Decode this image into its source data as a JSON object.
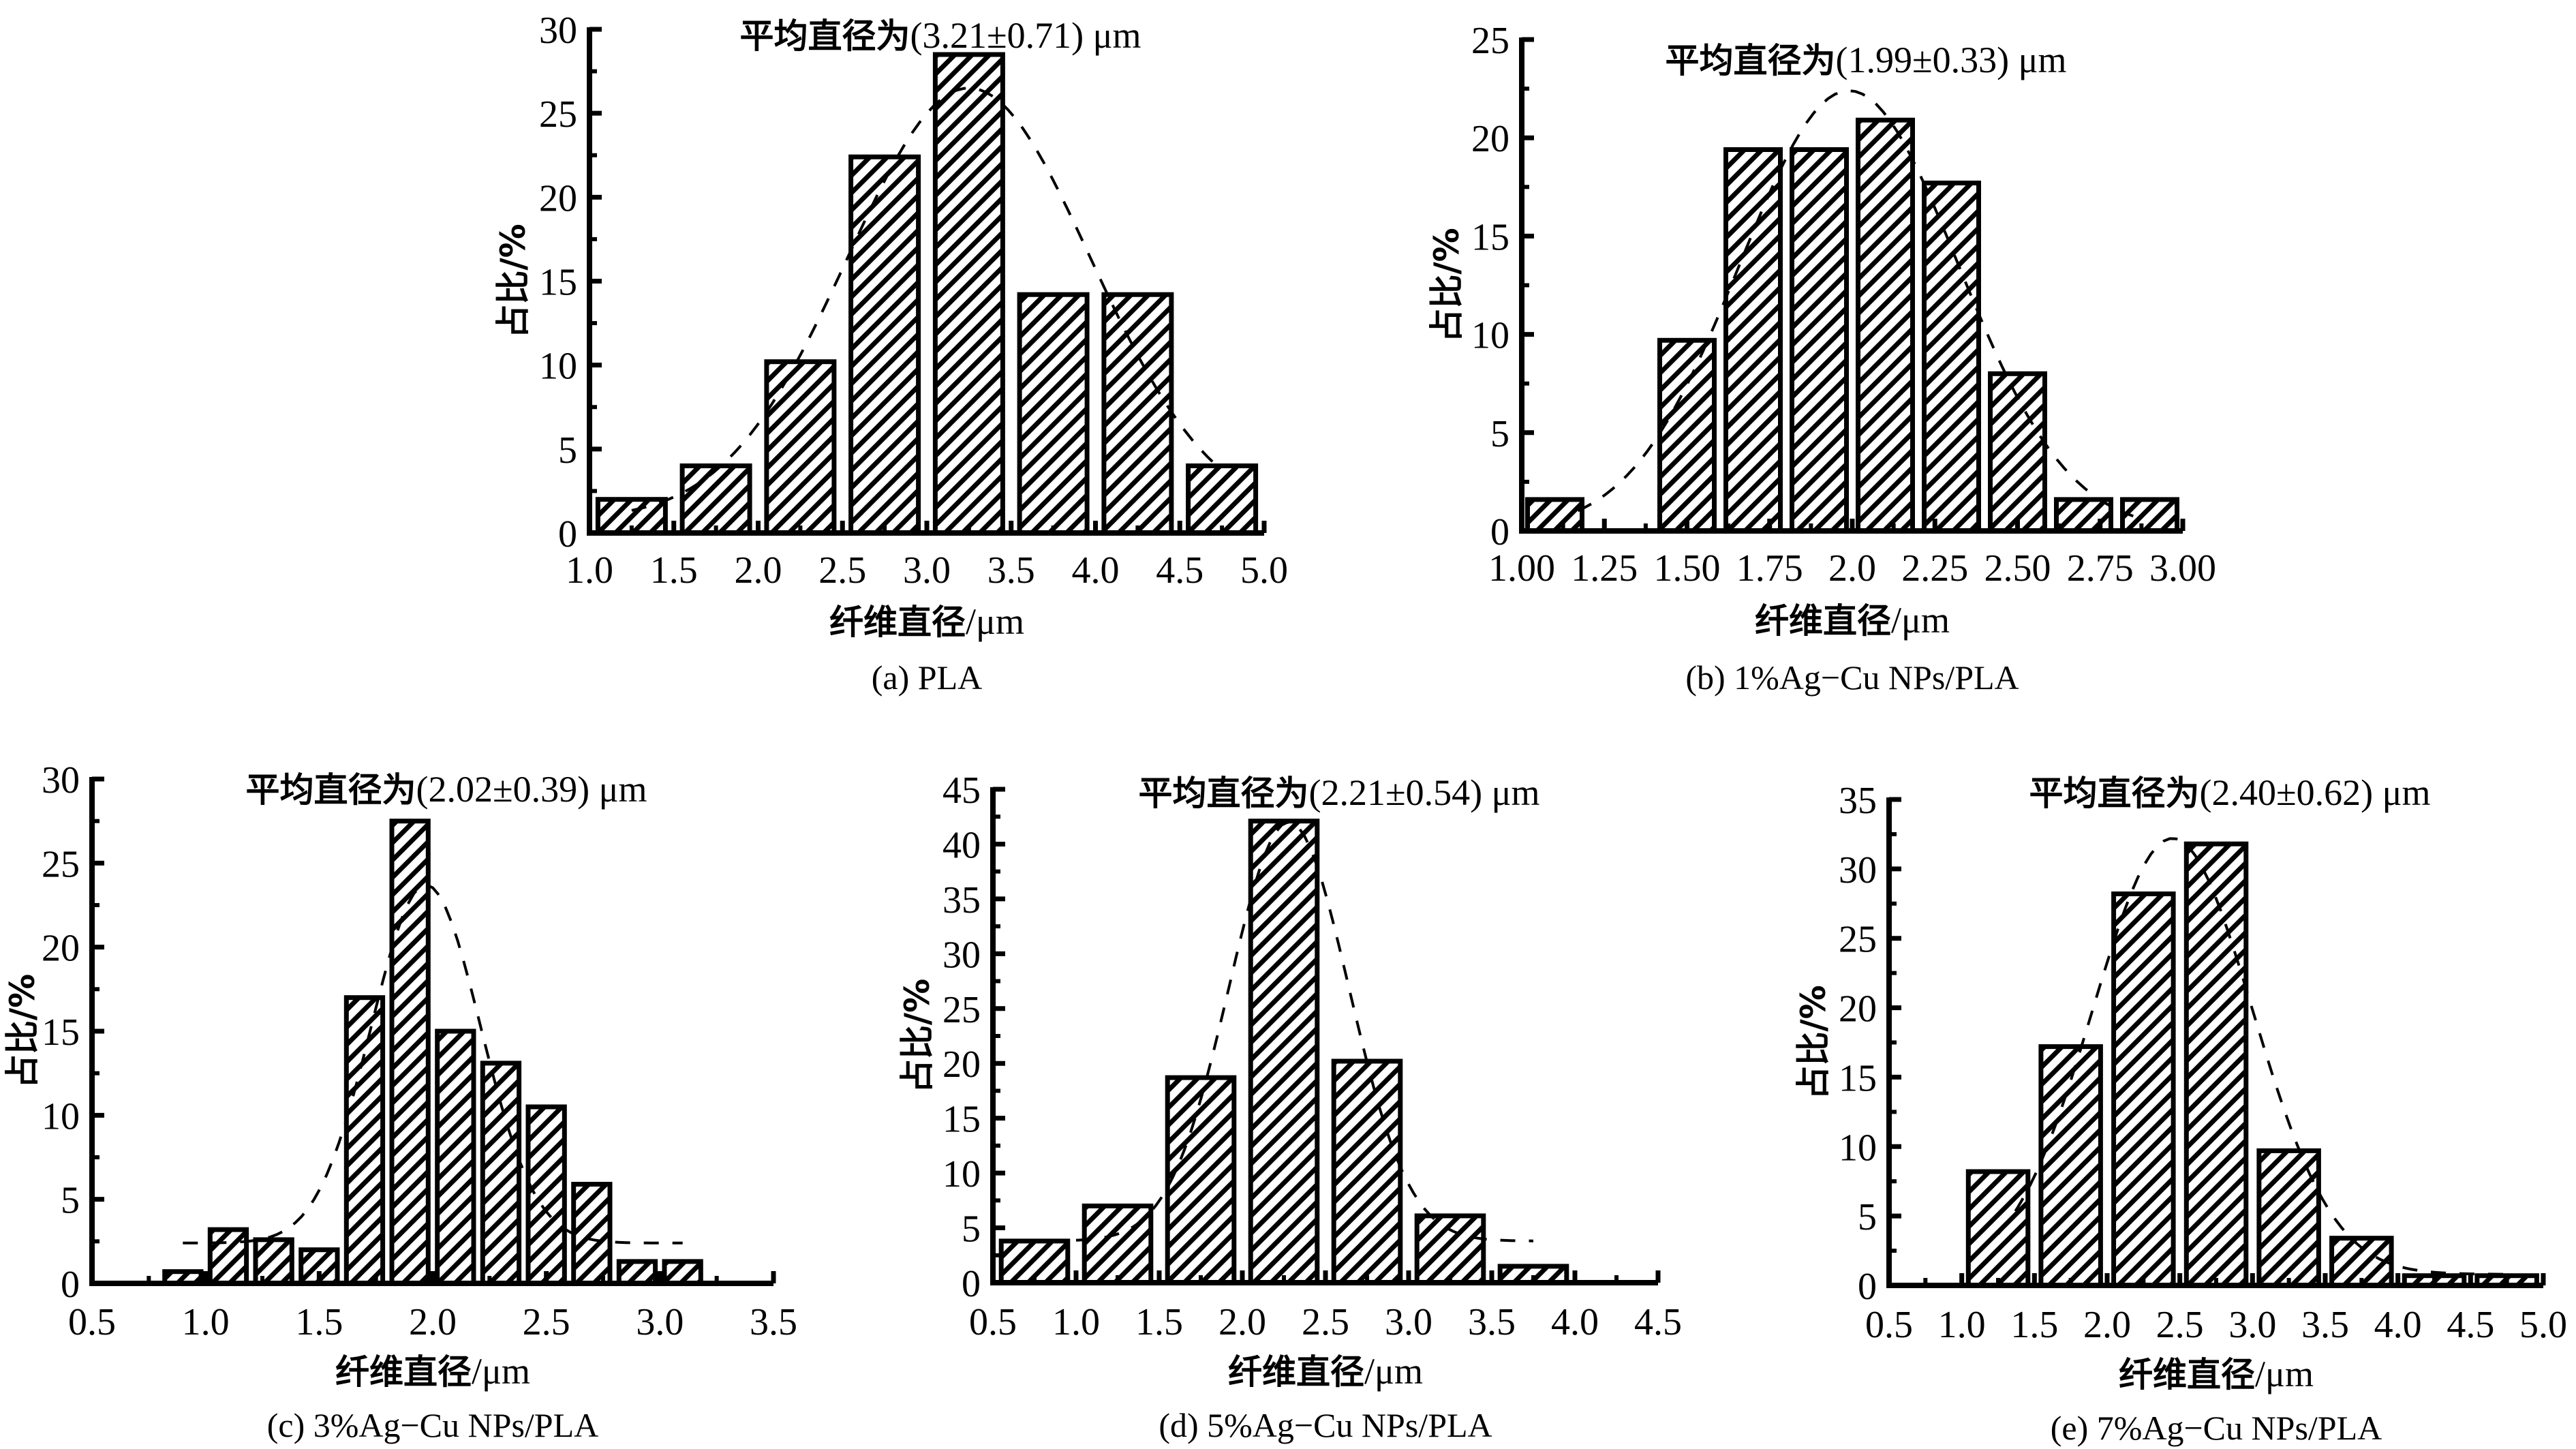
{
  "chart_data": [
    {
      "id": "a",
      "type": "bar",
      "title": "平均直径为(3.21±0.71) μm",
      "title_cn": "平均直径为",
      "title_num": "(3.21±0.71) μm",
      "xlabel_cn": "纤维直径",
      "xlabel_unit": "/μm",
      "ylabel": "占比/%",
      "caption": "(a) PLA",
      "xlim": [
        1.0,
        5.0
      ],
      "ylim": [
        0,
        30
      ],
      "xticks": [
        "1.0",
        "1.5",
        "2.0",
        "2.5",
        "3.0",
        "3.5",
        "4.0",
        "4.5",
        "5.0"
      ],
      "yticks": [
        "0",
        "5",
        "10",
        "15",
        "20",
        "25",
        "30"
      ],
      "ytick_step": 5,
      "bar_width": 0.4,
      "x": [
        1.25,
        1.75,
        2.25,
        2.75,
        3.25,
        3.75,
        4.25,
        4.75
      ],
      "values": [
        2.0,
        4.0,
        10.2,
        22.4,
        28.5,
        14.2,
        14.2,
        4.0
      ],
      "fit": {
        "type": "gaussian",
        "peak": 26.5,
        "center": 3.25,
        "sigma": 0.72,
        "baseline": 0.8,
        "from": 1.25,
        "to": 4.75
      }
    },
    {
      "id": "b",
      "type": "bar",
      "title": "平均直径为(1.99±0.33) μm",
      "title_cn": "平均直径为",
      "title_num": "(1.99±0.33) μm",
      "xlabel_cn": "纤维直径",
      "xlabel_unit": "/μm",
      "ylabel": "占比/%",
      "caption": "(b) 1%Ag−Cu NPs/PLA",
      "xlim": [
        1.0,
        3.0
      ],
      "ylim": [
        0,
        25
      ],
      "xticks": [
        "1.00",
        "1.25",
        "1.50",
        "1.75",
        "2.0",
        "2.25",
        "2.50",
        "2.75",
        "3.00"
      ],
      "yticks": [
        "0",
        "5",
        "10",
        "15",
        "20",
        "25"
      ],
      "ytick_step": 5,
      "bar_width": 0.165,
      "x": [
        1.1,
        1.5,
        1.7,
        1.9,
        2.1,
        2.3,
        2.5,
        2.7,
        2.9
      ],
      "values": [
        1.6,
        9.7,
        19.4,
        19.4,
        20.9,
        17.7,
        8.0,
        1.6,
        1.6
      ],
      "fit": {
        "type": "gaussian",
        "peak": 22.4,
        "center": 1.99,
        "sigma": 0.33,
        "baseline": 0,
        "from": 1.17,
        "to": 2.85
      }
    },
    {
      "id": "c",
      "type": "bar",
      "title": "平均直径为(2.02±0.39) μm",
      "title_cn": "平均直径为",
      "title_num": "(2.02±0.39) μm",
      "xlabel_cn": "纤维直径",
      "xlabel_unit": "/μm",
      "ylabel": "占比/%",
      "caption": "(c) 3%Ag−Cu NPs/PLA",
      "xlim": [
        0.5,
        3.5
      ],
      "ylim": [
        0,
        30
      ],
      "xticks": [
        "0.5",
        "1.0",
        "1.5",
        "2.0",
        "2.5",
        "3.0",
        "3.5"
      ],
      "yticks": [
        "0",
        "5",
        "10",
        "15",
        "20",
        "25",
        "30"
      ],
      "ytick_step": 5,
      "bar_width": 0.16,
      "x": [
        0.9,
        1.1,
        1.3,
        1.5,
        1.7,
        1.9,
        2.1,
        2.3,
        2.5,
        2.7,
        2.9,
        3.1
      ],
      "values": [
        0.7,
        3.2,
        2.6,
        2.0,
        17.0,
        27.5,
        15.0,
        13.1,
        10.5,
        5.9,
        1.3,
        1.3
      ],
      "fit": {
        "type": "gaussian",
        "peak": 23.7,
        "center": 1.97,
        "sigma": 0.24,
        "baseline": 2.4,
        "from": 0.9,
        "to": 3.1
      }
    },
    {
      "id": "d",
      "type": "bar",
      "title": "平均直径为(2.21±0.54) μm",
      "title_cn": "平均直径为",
      "title_num": "(2.21±0.54) μm",
      "xlabel_cn": "纤维直径",
      "xlabel_unit": "/μm",
      "ylabel": "占比/%",
      "caption": "(d) 5%Ag−Cu NPs/PLA",
      "xlim": [
        0.5,
        4.5
      ],
      "ylim": [
        0,
        45
      ],
      "xticks": [
        "0.5",
        "1.0",
        "1.5",
        "2.0",
        "2.5",
        "3.0",
        "3.5",
        "4.0",
        "4.5"
      ],
      "yticks": [
        "0",
        "5",
        "10",
        "15",
        "20",
        "25",
        "30",
        "35",
        "40",
        "45"
      ],
      "ytick_step": 5,
      "bar_width": 0.4,
      "x": [
        0.75,
        1.25,
        1.75,
        2.25,
        2.75,
        3.25,
        3.75
      ],
      "values": [
        3.8,
        7.0,
        18.7,
        42.1,
        20.2,
        6.1,
        1.5
      ],
      "fit": {
        "type": "gaussian",
        "peak": 42.0,
        "center": 2.28,
        "sigma": 0.36,
        "baseline": 3.8,
        "from": 1.0,
        "to": 3.75
      }
    },
    {
      "id": "e",
      "type": "bar",
      "title": "平均直径为(2.40±0.62) μm",
      "title_cn": "平均直径为",
      "title_num": "(2.40±0.62) μm",
      "xlabel_cn": "纤维直径",
      "xlabel_unit": "/μm",
      "ylabel": "占比/%",
      "caption": "(e) 7%Ag−Cu NPs/PLA",
      "xlim": [
        0.5,
        5.0
      ],
      "ylim": [
        0,
        35
      ],
      "xticks": [
        "0.5",
        "1.0",
        "1.5",
        "2.0",
        "2.5",
        "3.0",
        "3.5",
        "4.0",
        "4.5",
        "5.0"
      ],
      "yticks": [
        "0",
        "5",
        "10",
        "15",
        "20",
        "25",
        "30",
        "35"
      ],
      "ytick_step": 5,
      "bar_width": 0.41,
      "x": [
        1.25,
        1.75,
        2.25,
        2.75,
        3.25,
        3.75,
        4.25,
        4.75
      ],
      "values": [
        8.2,
        17.2,
        28.2,
        31.8,
        9.7,
        3.4,
        0.7,
        0.7
      ],
      "fit": {
        "type": "gaussian",
        "peak": 32.2,
        "center": 2.45,
        "sigma": 0.55,
        "baseline": 0.8,
        "from": 1.25,
        "to": 4.75
      }
    }
  ]
}
